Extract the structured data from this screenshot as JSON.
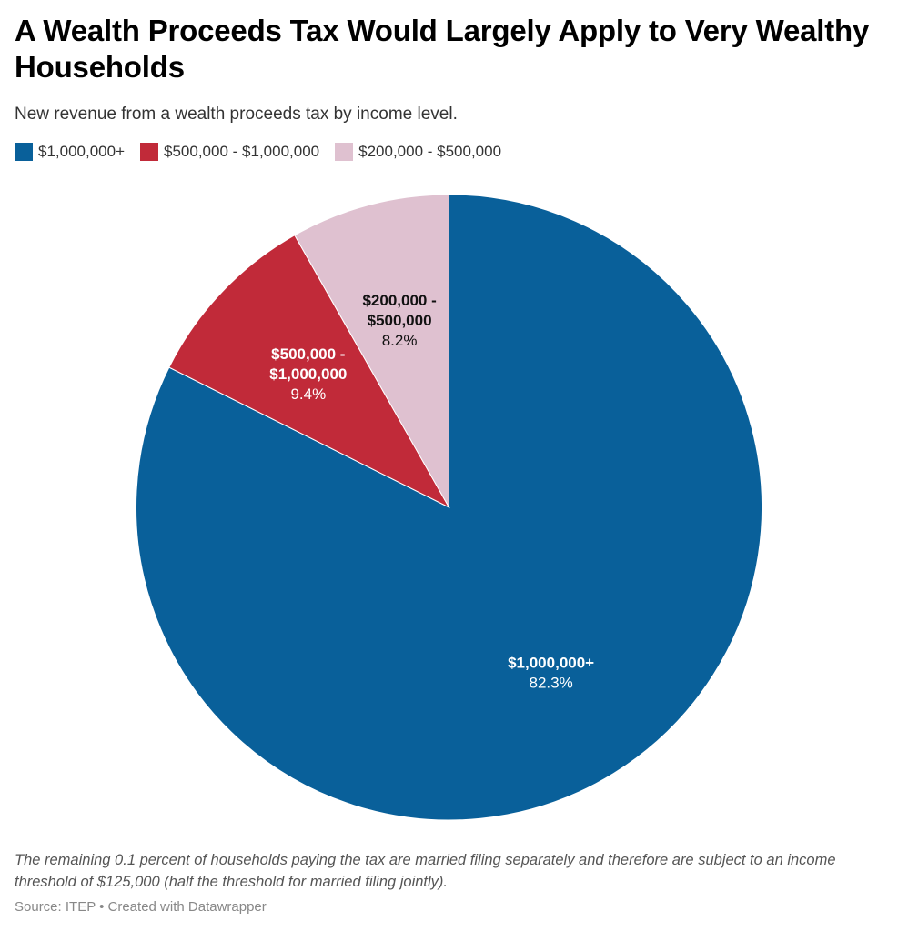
{
  "title": "A Wealth Proceeds Tax Would Largely Apply to Very Wealthy Households",
  "subtitle": "New revenue from a wealth proceeds tax by income level.",
  "chart_data": {
    "type": "pie",
    "title": "A Wealth Proceeds Tax Would Largely Apply to Very Wealthy Households",
    "subtitle": "New revenue from a wealth proceeds tax by income level.",
    "legend_position": "top-left",
    "slices": [
      {
        "name": "$1,000,000+",
        "label_lines": [
          "$1,000,000+"
        ],
        "value": 82.3,
        "percent_label": "82.3%",
        "color": "#09609a",
        "label_color": "#ffffff"
      },
      {
        "name": "$500,000 - $1,000,000",
        "label_lines": [
          "$500,000 -",
          "$1,000,000"
        ],
        "value": 9.4,
        "percent_label": "9.4%",
        "color": "#c12a39",
        "label_color": "#ffffff"
      },
      {
        "name": "$200,000 - $500,000",
        "label_lines": [
          "$200,000 -",
          "$500,000"
        ],
        "value": 8.2,
        "percent_label": "8.2%",
        "color": "#dfc1d0",
        "label_color": "#111111"
      }
    ]
  },
  "notes": "The remaining 0.1 percent of households paying the tax are married filing separately and therefore are subject to an income threshold of $125,000 (half the threshold for married filing jointly).",
  "source": "Source: ITEP • Created with Datawrapper"
}
